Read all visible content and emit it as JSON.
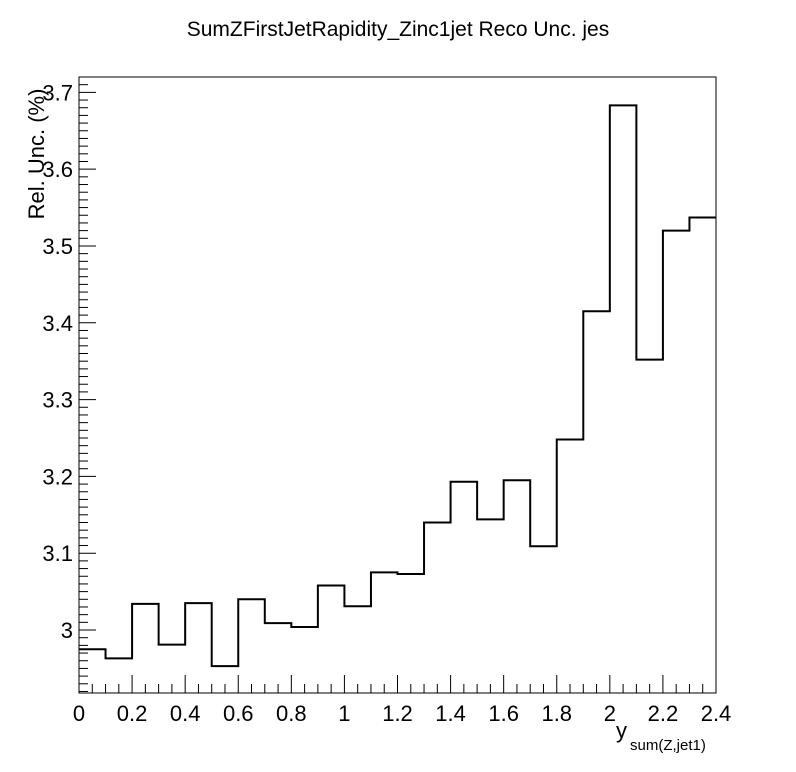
{
  "chart_data": {
    "type": "histogram",
    "title": "SumZFirstJetRapidity_Zinc1jet Reco Unc. jes",
    "xlabel": "y",
    "xlabel_subscript": "sum(Z,jet1)",
    "ylabel": "Rel. Unc. (%)",
    "xlim": [
      0,
      2.4
    ],
    "ylim": [
      2.918,
      3.72
    ],
    "x_ticks": [
      "0",
      "0.2",
      "0.4",
      "0.6",
      "0.8",
      "1",
      "1.2",
      "1.4",
      "1.6",
      "1.8",
      "2",
      "2.2",
      "2.4"
    ],
    "y_ticks": [
      "3",
      "3.1",
      "3.2",
      "3.3",
      "3.4",
      "3.5",
      "3.6",
      "3.7"
    ],
    "bin_edges": [
      0,
      0.1,
      0.2,
      0.3,
      0.4,
      0.5,
      0.6,
      0.7,
      0.8,
      0.9,
      1.0,
      1.1,
      1.2,
      1.3,
      1.4,
      1.5,
      1.6,
      1.7,
      1.8,
      1.9,
      2.0,
      2.1,
      2.2,
      2.3,
      2.4
    ],
    "values": [
      2.975,
      2.963,
      3.034,
      2.981,
      3.035,
      2.953,
      3.04,
      3.009,
      3.004,
      3.058,
      3.031,
      3.075,
      3.073,
      3.14,
      3.193,
      3.144,
      3.195,
      3.109,
      3.248,
      3.415,
      3.683,
      3.352,
      3.52,
      3.537
    ],
    "line_color": "#000000",
    "grid": false,
    "legend": "none"
  }
}
